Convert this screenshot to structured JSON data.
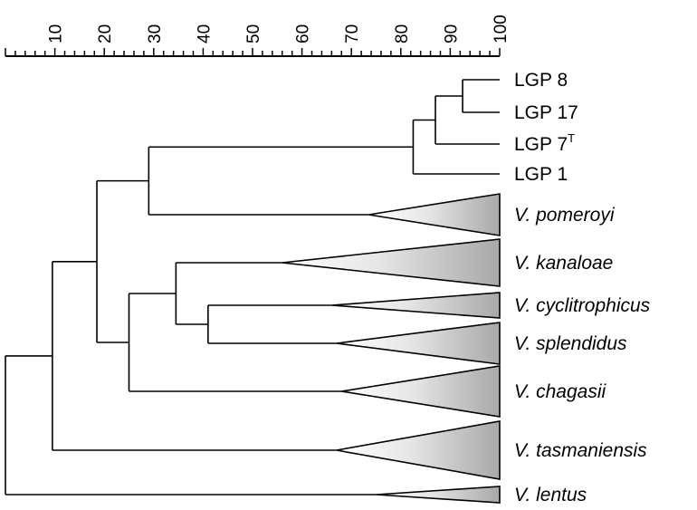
{
  "scale": {
    "min": 0,
    "max": 100,
    "major_step": 10,
    "minor_step": 2,
    "tick_labels": [
      "10",
      "20",
      "30",
      "40",
      "50",
      "60",
      "70",
      "80",
      "90",
      "100"
    ]
  },
  "leaves": [
    {
      "id": "lgp8",
      "label": "LGP 8",
      "sup": "",
      "italic": false,
      "kind": "line"
    },
    {
      "id": "lgp17",
      "label": "LGP 17",
      "sup": "",
      "italic": false,
      "kind": "line"
    },
    {
      "id": "lgp7",
      "label": "LGP 7",
      "sup": "T",
      "italic": false,
      "kind": "line"
    },
    {
      "id": "lgp1",
      "label": "LGP 1",
      "sup": "",
      "italic": false,
      "kind": "line"
    },
    {
      "id": "pomeroyi",
      "label": "V. pomeroyi",
      "sup": "",
      "italic": true,
      "kind": "triangle",
      "apex_similarity": 73.5
    },
    {
      "id": "kanaloae",
      "label": "V. kanaloae",
      "sup": "",
      "italic": true,
      "kind": "triangle",
      "apex_similarity": 56
    },
    {
      "id": "cyclitrophicus",
      "label": "V. cyclitrophicus",
      "sup": "",
      "italic": true,
      "kind": "triangle",
      "apex_similarity": 66
    },
    {
      "id": "splendidus",
      "label": "V. splendidus",
      "sup": "",
      "italic": true,
      "kind": "triangle",
      "apex_similarity": 67
    },
    {
      "id": "chagasii",
      "label": "V. chagasii",
      "sup": "",
      "italic": true,
      "kind": "triangle",
      "apex_similarity": 68
    },
    {
      "id": "tasmaniensis",
      "label": "V. tasmaniensis",
      "sup": "",
      "italic": true,
      "kind": "triangle",
      "apex_similarity": 67
    },
    {
      "id": "lentus",
      "label": "V. lentus",
      "sup": "",
      "italic": true,
      "kind": "triangle",
      "apex_similarity": 75
    }
  ],
  "nodes": [
    {
      "id": "n_8_17",
      "similarity": 92.5,
      "children": [
        "lgp8",
        "lgp17"
      ]
    },
    {
      "id": "n_7",
      "similarity": 87,
      "children": [
        "n_8_17",
        "lgp7"
      ]
    },
    {
      "id": "n_1",
      "similarity": 82.5,
      "children": [
        "n_7",
        "lgp1"
      ]
    },
    {
      "id": "n_pom",
      "similarity": 29,
      "children": [
        "n_1",
        "pomeroyi"
      ]
    },
    {
      "id": "n_cs",
      "similarity": 41,
      "children": [
        "cyclitrophicus",
        "splendidus"
      ]
    },
    {
      "id": "n_kcs",
      "similarity": 34.5,
      "children": [
        "kanaloae",
        "n_cs"
      ]
    },
    {
      "id": "n_kcsc",
      "similarity": 25,
      "children": [
        "n_kcs",
        "chagasii"
      ]
    },
    {
      "id": "n_big",
      "similarity": 18.5,
      "children": [
        "n_pom",
        "n_kcsc"
      ]
    },
    {
      "id": "n_tas",
      "similarity": 9.5,
      "children": [
        "n_big",
        "tasmaniensis"
      ]
    },
    {
      "id": "root",
      "similarity": 0,
      "children": [
        "n_tas",
        "lentus"
      ]
    }
  ],
  "colors": {
    "line": "#000000",
    "triangle_fill_light": "#f2f2f2",
    "triangle_fill_dark": "#9a9a9a"
  }
}
